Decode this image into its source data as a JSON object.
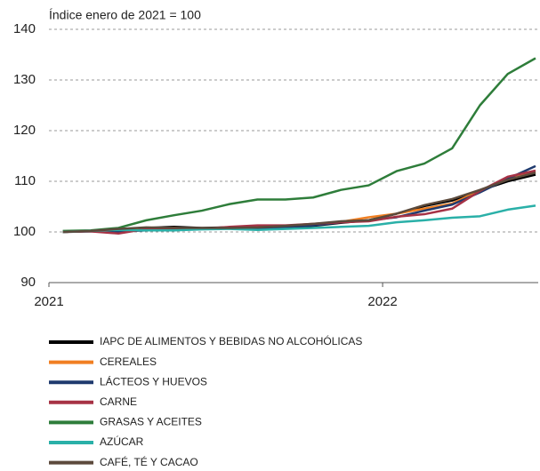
{
  "chart_data": {
    "type": "line",
    "ylabel": "Índice enero de 2021 = 100",
    "x": [
      0,
      1,
      2,
      3,
      4,
      5,
      6,
      7,
      8,
      9,
      10,
      11,
      12,
      13,
      14,
      15,
      16,
      17
    ],
    "xlim": [
      -0.5,
      17
    ],
    "xticks": [
      {
        "value": -0.5,
        "label": "2021"
      },
      {
        "value": 11.5,
        "label": "2022"
      }
    ],
    "ylim": [
      90,
      140
    ],
    "yticks": [
      90,
      100,
      110,
      120,
      130,
      140
    ],
    "grid": true,
    "legend": "bottom",
    "series": [
      {
        "name": "IAPC DE ALIMENTOS Y BEBIDAS NO ALCOHÓLICAS",
        "color": "#000000",
        "values": [
          100,
          100.2,
          100.4,
          100.8,
          101.0,
          100.8,
          100.9,
          100.8,
          100.9,
          101.2,
          101.8,
          102.3,
          103.6,
          105.1,
          106.2,
          108.2,
          110,
          111.3
        ]
      },
      {
        "name": "CEREALES",
        "color": "#f07f22",
        "values": [
          100,
          100.2,
          100.2,
          100.6,
          100.8,
          100.6,
          100.9,
          100.9,
          101.2,
          101.4,
          102.0,
          102.9,
          103.6,
          104.6,
          105.6,
          108.2,
          110.4,
          111.8
        ]
      },
      {
        "name": "LÁCTEOS Y HUEVOS",
        "color": "#1f3a6e",
        "values": [
          100,
          100.1,
          100.1,
          100.3,
          100.7,
          100.6,
          100.8,
          100.8,
          101.0,
          101.3,
          101.9,
          102.3,
          102.9,
          104.2,
          105.4,
          107.8,
          110.5,
          113.0
        ]
      },
      {
        "name": "CARNE",
        "color": "#a63245",
        "values": [
          100,
          100.1,
          99.7,
          100.6,
          100.7,
          100.6,
          101.0,
          101.3,
          101.3,
          101.6,
          101.9,
          102.1,
          103,
          103.5,
          104.6,
          108.1,
          110.9,
          112.1
        ]
      },
      {
        "name": "GRASAS Y ACEITES",
        "color": "#2e7d3a",
        "values": [
          100.2,
          100.3,
          100.8,
          102.3,
          103.3,
          104.2,
          105.5,
          106.4,
          106.4,
          106.8,
          108.3,
          109.2,
          112,
          113.5,
          116.5,
          125,
          131.2,
          134.3
        ]
      },
      {
        "name": "AZÚCAR",
        "color": "#2ab0a8",
        "values": [
          100,
          100.2,
          100.4,
          100.3,
          100.3,
          100.5,
          100.6,
          100.4,
          100.6,
          100.8,
          101.0,
          101.2,
          101.9,
          102.3,
          102.8,
          103.1,
          104.4,
          105.2
        ]
      },
      {
        "name": "CAFÉ, TÉ Y CACAO",
        "color": "#5c4a3c",
        "values": [
          100,
          100.2,
          100.6,
          100.9,
          100.8,
          100.8,
          100.8,
          100.9,
          101.2,
          101.6,
          102.1,
          102.3,
          103.6,
          105.3,
          106.5,
          108.3,
          110.3,
          111.7
        ]
      }
    ]
  }
}
